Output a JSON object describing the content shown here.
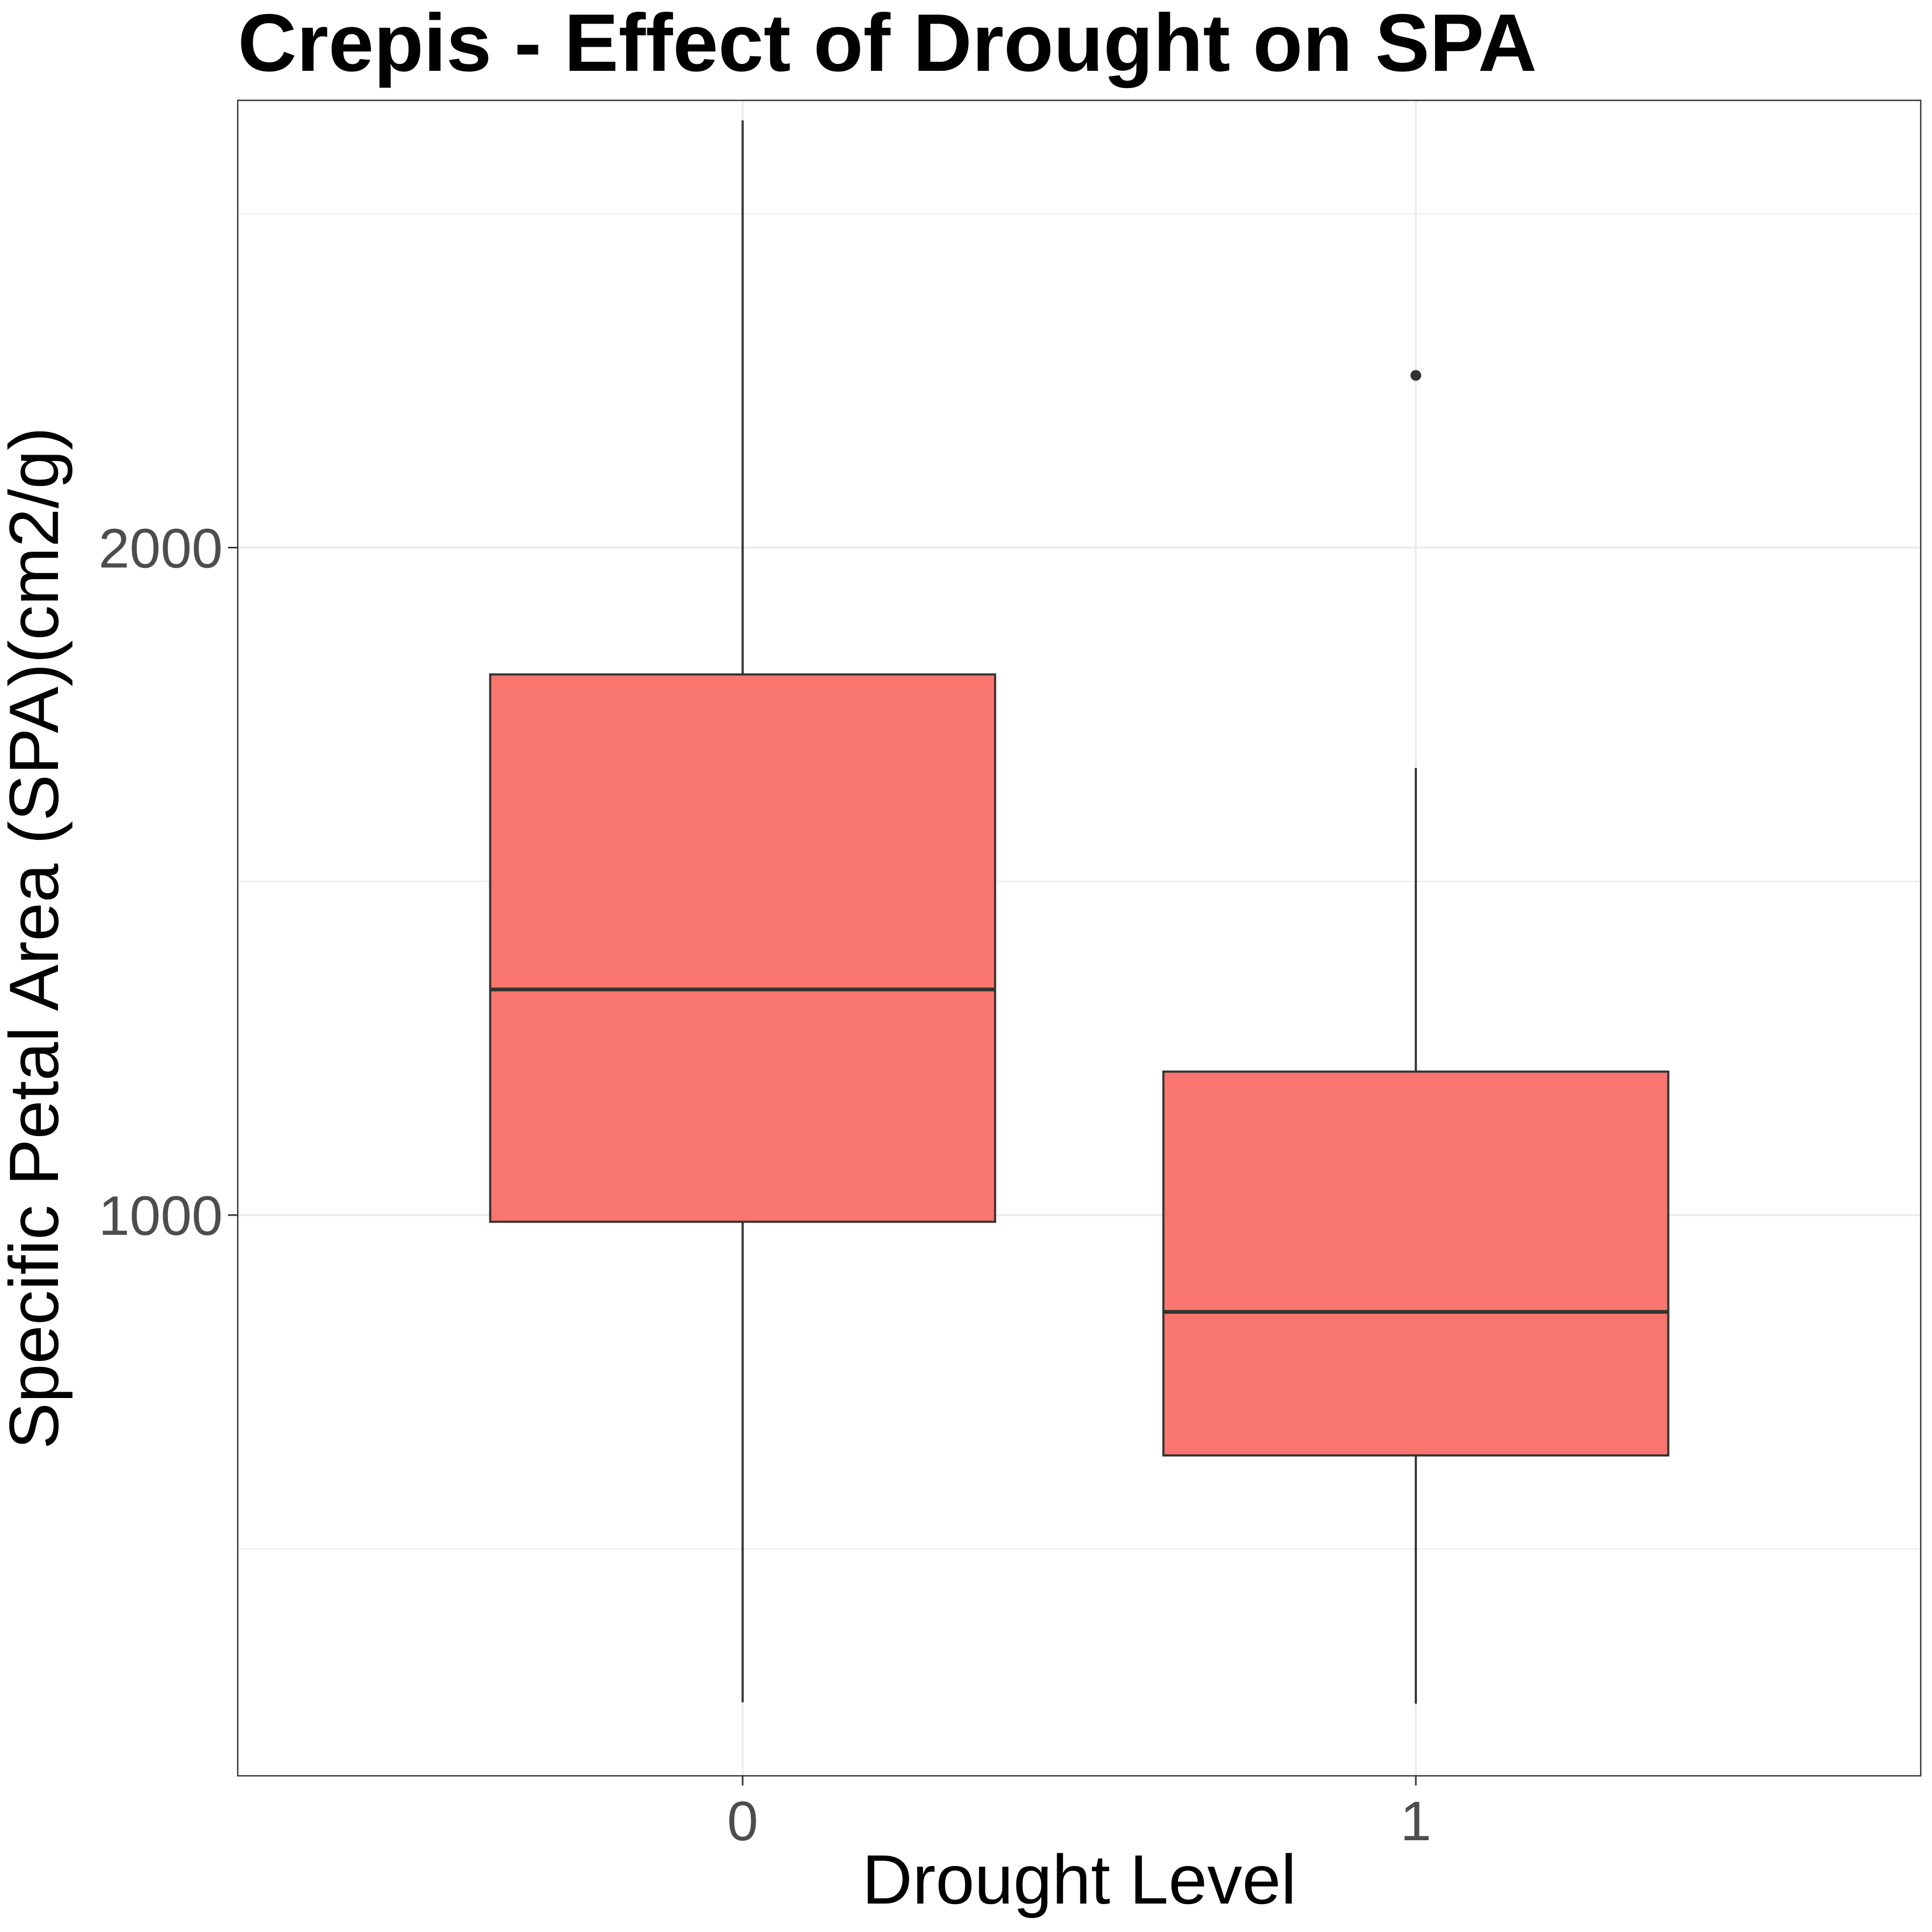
{
  "chart_data": {
    "type": "boxplot",
    "title": "Crepis - Effect of Drought on SPA",
    "xlabel": "Drought Level",
    "ylabel": "Specific Petal Area (SPA)(cm2/g)",
    "categories": [
      "0",
      "1"
    ],
    "boxes": [
      {
        "category": "0",
        "whisker_low": 270,
        "q1": 990,
        "median": 1338,
        "q3": 1810,
        "whisker_high": 2640,
        "outliers": []
      },
      {
        "category": "1",
        "whisker_low": 268,
        "q1": 640,
        "median": 855,
        "q3": 1215,
        "whisker_high": 1670,
        "outliers": [
          2258
        ]
      }
    ],
    "ylim": [
      160,
      2670
    ],
    "y_ticks": [
      1000,
      2000
    ],
    "y_minor_gridlines": [
      500,
      1500,
      2500
    ],
    "grid": true,
    "legend": "none",
    "colors": {
      "box_fill": "#f8766d",
      "box_outline": "#333333",
      "grid": "#ebebeb",
      "panel_border": "#333333"
    }
  }
}
